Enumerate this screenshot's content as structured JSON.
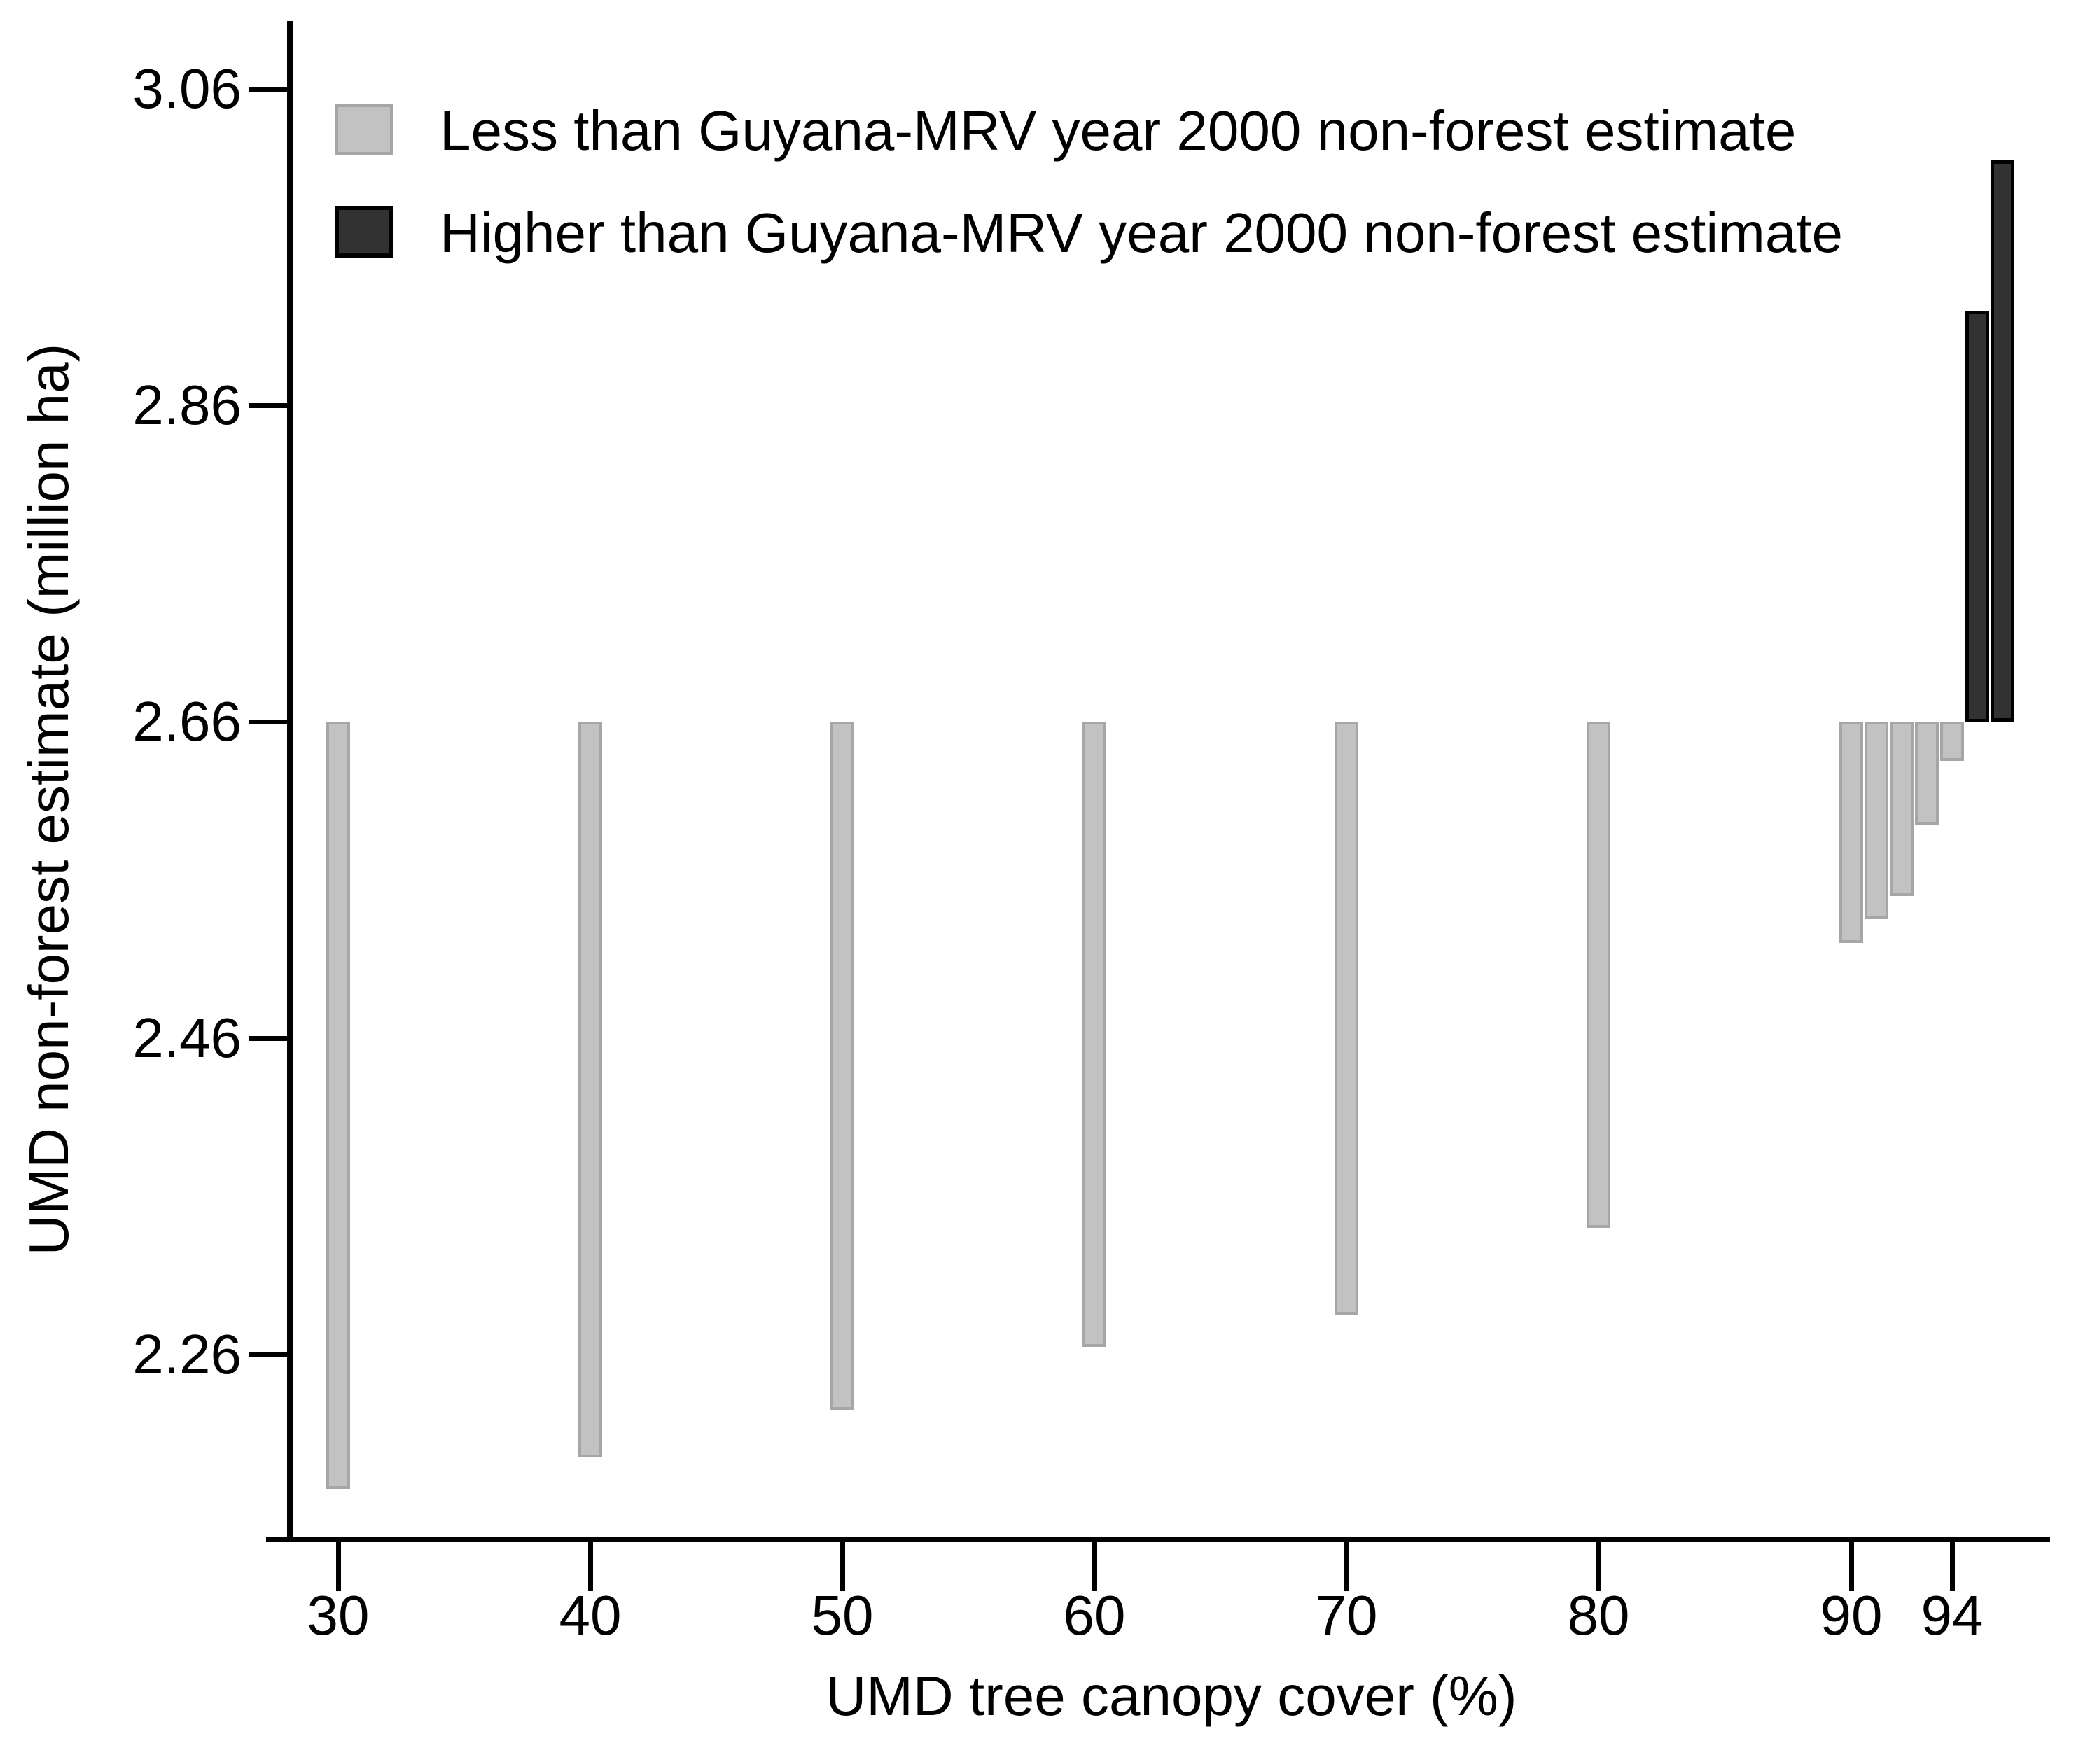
{
  "chart_data": {
    "type": "bar",
    "subtype": "range-bars-from-baseline",
    "title": "",
    "xlabel": "UMD tree canopy cover (%)",
    "ylabel": "UMD non-forest estimate (million ha)",
    "baseline_value": 2.66,
    "baseline_meaning": "Guyana-MRV year 2000 non-forest estimate",
    "x_ticks": [
      30,
      40,
      50,
      60,
      70,
      80,
      90,
      94
    ],
    "y_ticks": [
      2.26,
      2.46,
      2.66,
      2.86,
      3.06
    ],
    "y_tick_decimals": 2,
    "x_range": [
      28.2,
      97.9
    ],
    "y_range": [
      2.145,
      3.103
    ],
    "bar_width_units": 0.95,
    "grid": false,
    "legend_position": "top-left",
    "series": [
      {
        "name": "Less than Guyana-MRV year 2000 non-forest estimate",
        "relation": "below-baseline",
        "fill": "#c2c2c2",
        "border": "#a6a6a6",
        "border_px": 4,
        "points": [
          {
            "x": 30,
            "y": 2.175
          },
          {
            "x": 40,
            "y": 2.195
          },
          {
            "x": 50,
            "y": 2.225
          },
          {
            "x": 60,
            "y": 2.265
          },
          {
            "x": 70,
            "y": 2.285
          },
          {
            "x": 80,
            "y": 2.34
          },
          {
            "x": 90,
            "y": 2.52
          },
          {
            "x": 91,
            "y": 2.535
          },
          {
            "x": 92,
            "y": 2.55
          },
          {
            "x": 93,
            "y": 2.595
          },
          {
            "x": 94,
            "y": 2.635
          }
        ]
      },
      {
        "name": "Higher than Guyana-MRV year 2000 non-forest estimate",
        "relation": "above-baseline",
        "fill": "#323232",
        "border": "#000000",
        "border_px": 5,
        "points": [
          {
            "x": 95,
            "y": 2.92
          },
          {
            "x": 96,
            "y": 3.015
          }
        ]
      }
    ]
  },
  "colors": {
    "background": "#ffffff",
    "axis": "#000000",
    "text": "#000000"
  }
}
